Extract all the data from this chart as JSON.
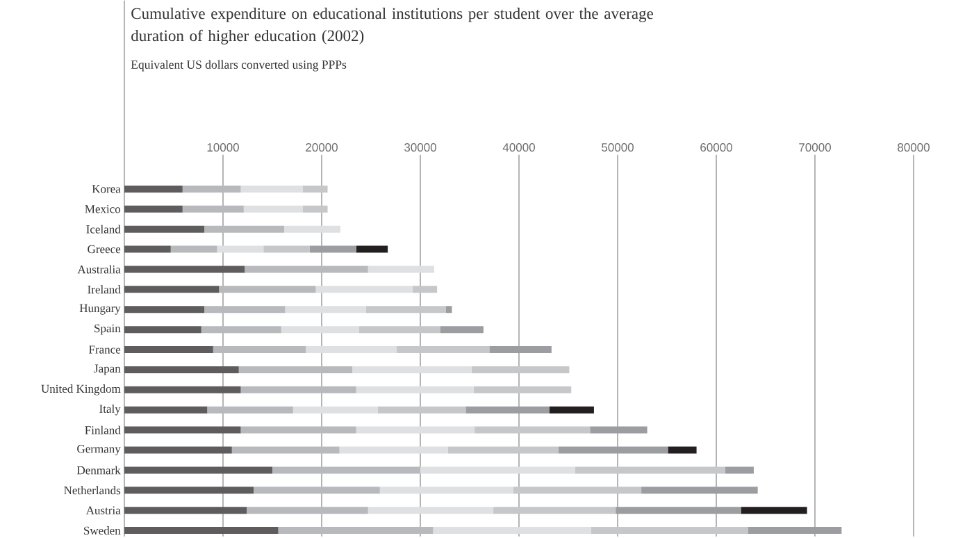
{
  "chart_data": {
    "type": "bar",
    "orientation": "horizontal",
    "stacked": true,
    "title": "Cumulative expenditure on educational institutions per student over the average duration of higher education (2002)",
    "subtitle": "Equivalent US dollars converted using PPPs",
    "categories": [
      "Korea",
      "Mexico",
      "Iceland",
      "Greece",
      "Australia",
      "Ireland",
      "Hungary",
      "Spain",
      "France",
      "Japan",
      "United Kingdom",
      "Italy",
      "Finland",
      "Germany",
      "Denmark",
      "Netherlands",
      "Austria",
      "Sweden"
    ],
    "series": [
      {
        "color": "#5e5c5d",
        "values": [
          5900,
          5900,
          8100,
          4700,
          12200,
          9600,
          8100,
          7800,
          9000,
          11600,
          11800,
          8400,
          11800,
          10900,
          15000,
          13100,
          12400,
          15600
        ]
      },
      {
        "color": "#b8b9bc",
        "values": [
          5900,
          6200,
          8100,
          4700,
          12500,
          9800,
          8200,
          8100,
          9400,
          11500,
          11700,
          8700,
          11700,
          10900,
          15000,
          12800,
          12300,
          15700
        ]
      },
      {
        "color": "#dfe0e1",
        "values": [
          6300,
          6000,
          5700,
          4700,
          6700,
          9800,
          8200,
          7900,
          9200,
          12100,
          11900,
          8600,
          12000,
          11000,
          15700,
          13500,
          12700,
          16000
        ]
      },
      {
        "color": "#c6c7c9",
        "values": [
          2500,
          2500,
          null,
          4700,
          null,
          2500,
          8100,
          8200,
          9400,
          9900,
          9900,
          8900,
          11700,
          11200,
          15200,
          13000,
          12400,
          15900
        ]
      },
      {
        "color": "#9c9da1",
        "values": [
          null,
          null,
          null,
          4700,
          null,
          null,
          600,
          4400,
          6300,
          null,
          null,
          8500,
          5800,
          11100,
          2900,
          11800,
          12700,
          9500
        ]
      },
      {
        "color": "#231f20",
        "values": [
          null,
          null,
          null,
          3200,
          null,
          null,
          null,
          null,
          null,
          null,
          null,
          4500,
          null,
          2900,
          null,
          null,
          6700,
          null
        ]
      }
    ],
    "xlim": [
      0,
      80000
    ],
    "xticks": [
      10000,
      20000,
      30000,
      40000,
      50000,
      60000,
      70000,
      80000
    ],
    "grid": "x"
  }
}
